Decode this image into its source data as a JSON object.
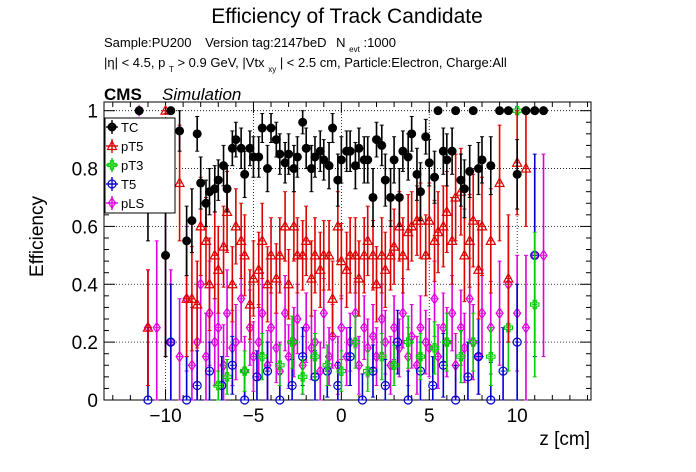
{
  "chart_data": {
    "type": "scatter",
    "title": "Efficiency of Track Candidate",
    "info": {
      "sample": "Sample:PU200",
      "version": "Version tag:2147beD",
      "nevt_main": "N",
      "nevt_sub": "evt",
      "nevt_value": ":1000",
      "cuts": {
        "eta": "|η| < 4.5, p",
        "pt_sub": "T",
        "pt_rest": " > 0.9 GeV, |Vtx",
        "vtx_sub": "xy",
        "vtx_rest": "| < 2.5 cm, Particle:Electron, Charge:All"
      }
    },
    "cms_label": "CMS",
    "simulation_label": "Simulation",
    "xlabel": "z [cm]",
    "ylabel": "Efficiency",
    "xlim": [
      -13.5,
      14.2
    ],
    "ylim": [
      0,
      1.03
    ],
    "xticks": [
      -10,
      -5,
      0,
      5,
      10
    ],
    "yticks": [
      0,
      0.2,
      0.4,
      0.6,
      0.8,
      1
    ],
    "xtick_labels": [
      "−10",
      "−5",
      "0",
      "5",
      "10"
    ],
    "ytick_labels": [
      "0",
      "0.2",
      "0.4",
      "0.6",
      "0.8",
      "1"
    ],
    "grid": true,
    "legend_position": "top-left",
    "series": [
      {
        "name": "TC",
        "color": "#000000",
        "marker": "filled-circle",
        "x": [
          -11.5,
          -11.0,
          -10.0,
          -9.7,
          -9.2,
          -8.8,
          -8.5,
          -8.2,
          -8.0,
          -7.7,
          -7.5,
          -7.2,
          -7.0,
          -6.7,
          -6.5,
          -6.2,
          -6.0,
          -5.7,
          -5.5,
          -5.2,
          -5.0,
          -4.7,
          -4.5,
          -4.2,
          -4.0,
          -3.7,
          -3.5,
          -3.2,
          -3.0,
          -2.7,
          -2.5,
          -2.2,
          -2.0,
          -1.7,
          -1.5,
          -1.2,
          -1.0,
          -0.7,
          -0.5,
          -0.2,
          0.0,
          0.3,
          0.5,
          0.8,
          1.0,
          1.3,
          1.5,
          1.8,
          2.0,
          2.3,
          2.5,
          2.8,
          3.0,
          3.3,
          3.5,
          3.8,
          4.0,
          4.3,
          4.5,
          4.8,
          5.0,
          5.3,
          5.5,
          5.8,
          6.0,
          6.3,
          6.5,
          6.8,
          7.0,
          7.3,
          7.5,
          7.8,
          8.0,
          8.5,
          9.0,
          9.5,
          10.0,
          10.5,
          11.0,
          11.5
        ],
        "values": [
          1.0,
          0.75,
          0.5,
          1.0,
          0.93,
          0.55,
          0.62,
          0.92,
          0.75,
          0.68,
          0.72,
          0.73,
          0.76,
          0.81,
          0.73,
          0.87,
          0.9,
          0.87,
          0.78,
          0.87,
          0.84,
          0.84,
          0.94,
          0.8,
          0.94,
          0.9,
          0.85,
          0.82,
          0.85,
          0.8,
          0.84,
          0.96,
          0.87,
          0.8,
          0.84,
          0.86,
          0.83,
          0.81,
          0.94,
          0.76,
          0.83,
          0.86,
          0.86,
          0.81,
          0.87,
          0.83,
          0.83,
          0.7,
          0.9,
          0.88,
          0.76,
          0.7,
          0.83,
          0.7,
          0.86,
          0.84,
          0.92,
          0.78,
          0.72,
          0.91,
          0.82,
          0.77,
          1.0,
          0.86,
          0.83,
          0.86,
          1.0,
          0.76,
          0.73,
          0.79,
          1.0,
          0.8,
          0.83,
          0.81,
          1.0,
          1.0,
          0.78,
          1.0,
          1.0,
          1.0
        ],
        "err": [
          0.01,
          0.2,
          0.35,
          0.01,
          0.07,
          0.12,
          0.11,
          0.06,
          0.09,
          0.08,
          0.08,
          0.08,
          0.07,
          0.07,
          0.08,
          0.06,
          0.06,
          0.07,
          0.08,
          0.06,
          0.07,
          0.07,
          0.05,
          0.08,
          0.05,
          0.06,
          0.07,
          0.07,
          0.07,
          0.08,
          0.07,
          0.04,
          0.07,
          0.08,
          0.07,
          0.07,
          0.07,
          0.08,
          0.05,
          0.09,
          0.08,
          0.07,
          0.07,
          0.08,
          0.07,
          0.08,
          0.08,
          0.1,
          0.06,
          0.07,
          0.09,
          0.1,
          0.08,
          0.1,
          0.07,
          0.08,
          0.06,
          0.09,
          0.1,
          0.06,
          0.08,
          0.09,
          0.01,
          0.08,
          0.09,
          0.08,
          0.01,
          0.09,
          0.1,
          0.09,
          0.01,
          0.09,
          0.08,
          0.1,
          0.01,
          0.01,
          0.12,
          0.01,
          0.01,
          0.01
        ]
      },
      {
        "name": "pT5",
        "color": "#dd0000",
        "marker": "open-triangle",
        "x": [
          -11.0,
          -10.0,
          -9.2,
          -8.8,
          -8.5,
          -8.2,
          -8.0,
          -7.7,
          -7.5,
          -7.2,
          -7.0,
          -6.7,
          -6.5,
          -6.2,
          -6.0,
          -5.7,
          -5.5,
          -5.2,
          -5.0,
          -4.7,
          -4.5,
          -4.2,
          -4.0,
          -3.7,
          -3.5,
          -3.2,
          -3.0,
          -2.7,
          -2.5,
          -2.2,
          -2.0,
          -1.7,
          -1.5,
          -1.2,
          -1.0,
          -0.7,
          -0.5,
          -0.2,
          0.0,
          0.3,
          0.5,
          0.8,
          1.0,
          1.3,
          1.5,
          1.8,
          2.0,
          2.3,
          2.5,
          2.8,
          3.0,
          3.3,
          3.5,
          3.8,
          4.0,
          4.3,
          4.5,
          4.8,
          5.0,
          5.3,
          5.5,
          5.8,
          6.0,
          6.3,
          6.5,
          6.8,
          7.0,
          7.3,
          7.5,
          7.8,
          8.0,
          8.5,
          9.0,
          9.5,
          10.0,
          10.5
        ],
        "values": [
          0.25,
          1.0,
          0.75,
          0.35,
          0.35,
          0.33,
          0.6,
          0.55,
          0.4,
          0.5,
          0.45,
          0.53,
          0.65,
          0.4,
          0.6,
          0.55,
          0.5,
          0.33,
          0.42,
          0.45,
          0.55,
          0.4,
          0.5,
          0.42,
          0.5,
          0.6,
          0.4,
          0.6,
          0.5,
          0.5,
          0.55,
          0.42,
          0.5,
          0.45,
          0.5,
          0.5,
          0.35,
          0.6,
          0.48,
          0.45,
          0.5,
          0.5,
          0.42,
          0.5,
          0.55,
          0.5,
          0.4,
          0.5,
          0.45,
          0.5,
          0.53,
          0.6,
          0.5,
          0.58,
          0.6,
          0.62,
          0.62,
          0.5,
          0.62,
          0.55,
          0.58,
          0.6,
          0.65,
          0.55,
          0.7,
          0.72,
          0.5,
          0.55,
          0.62,
          0.45,
          0.6,
          0.55,
          0.75,
          0.42,
          0.82,
          0.8
        ],
        "err": [
          0.2,
          0.01,
          0.2,
          0.2,
          0.18,
          0.15,
          0.17,
          0.15,
          0.16,
          0.15,
          0.15,
          0.14,
          0.14,
          0.13,
          0.13,
          0.13,
          0.14,
          0.12,
          0.13,
          0.13,
          0.13,
          0.13,
          0.13,
          0.12,
          0.13,
          0.12,
          0.12,
          0.12,
          0.13,
          0.12,
          0.12,
          0.13,
          0.13,
          0.13,
          0.12,
          0.12,
          0.13,
          0.12,
          0.13,
          0.13,
          0.13,
          0.13,
          0.13,
          0.13,
          0.12,
          0.12,
          0.13,
          0.13,
          0.13,
          0.12,
          0.13,
          0.12,
          0.13,
          0.13,
          0.12,
          0.12,
          0.13,
          0.14,
          0.13,
          0.14,
          0.14,
          0.14,
          0.14,
          0.15,
          0.15,
          0.15,
          0.16,
          0.16,
          0.16,
          0.17,
          0.17,
          0.18,
          0.2,
          0.22,
          0.18,
          0.2
        ]
      },
      {
        "name": "pT3",
        "color": "#00cc00",
        "marker": "open-cross",
        "x": [
          -7.0,
          -6.5,
          -5.5,
          -4.5,
          -3.5,
          -2.8,
          -2.2,
          -1.5,
          -0.8,
          0.0,
          0.8,
          1.5,
          2.3,
          3.0,
          3.8,
          4.5,
          5.3,
          6.0,
          6.8,
          7.5,
          8.5,
          9.5,
          10.0,
          11.0
        ],
        "values": [
          0.05,
          0.08,
          0.1,
          0.15,
          0.12,
          0.2,
          0.08,
          0.15,
          0.12,
          0.1,
          0.2,
          0.1,
          0.15,
          0.12,
          0.2,
          0.15,
          0.18,
          0.2,
          0.15,
          0.2,
          0.15,
          0.25,
          1.0,
          0.33
        ],
        "err": [
          0.05,
          0.06,
          0.07,
          0.08,
          0.07,
          0.09,
          0.06,
          0.08,
          0.07,
          0.07,
          0.09,
          0.07,
          0.08,
          0.07,
          0.09,
          0.08,
          0.09,
          0.1,
          0.09,
          0.1,
          0.1,
          0.15,
          0.01,
          0.25
        ]
      },
      {
        "name": "T5",
        "color": "#0000cc",
        "marker": "open-circle",
        "x": [
          -11.0,
          -9.7,
          -8.8,
          -8.2,
          -7.5,
          -6.8,
          -6.2,
          -5.5,
          -4.8,
          -4.2,
          -3.5,
          -2.8,
          -2.2,
          -1.5,
          -0.8,
          -0.2,
          0.5,
          1.2,
          1.8,
          2.5,
          3.2,
          3.8,
          4.5,
          5.2,
          5.8,
          6.5,
          7.2,
          7.8,
          8.5,
          9.2,
          10.0,
          11.0
        ],
        "values": [
          0.0,
          0.2,
          0.0,
          0.05,
          0.1,
          0.05,
          0.12,
          0.0,
          0.08,
          0.1,
          0.0,
          0.05,
          0.15,
          0.08,
          0.1,
          0.05,
          0.15,
          0.0,
          0.1,
          0.05,
          0.2,
          0.0,
          0.1,
          0.05,
          0.12,
          0.0,
          0.08,
          0.15,
          0.0,
          0.1,
          0.2,
          0.5
        ],
        "err": [
          0.25,
          0.2,
          0.15,
          0.12,
          0.1,
          0.1,
          0.1,
          0.1,
          0.09,
          0.1,
          0.09,
          0.09,
          0.1,
          0.09,
          0.09,
          0.08,
          0.1,
          0.09,
          0.09,
          0.09,
          0.11,
          0.1,
          0.1,
          0.1,
          0.11,
          0.12,
          0.12,
          0.13,
          0.13,
          0.15,
          0.2,
          0.35
        ]
      },
      {
        "name": "pLS",
        "color": "#dd00dd",
        "marker": "open-diamond",
        "x": [
          -11.5,
          -11.0,
          -10.5,
          -10.0,
          -9.7,
          -9.2,
          -8.8,
          -8.5,
          -8.2,
          -8.0,
          -7.7,
          -7.5,
          -7.2,
          -7.0,
          -6.7,
          -6.5,
          -6.2,
          -6.0,
          -5.7,
          -5.5,
          -5.2,
          -5.0,
          -4.7,
          -4.5,
          -4.2,
          -4.0,
          -3.7,
          -3.5,
          -3.2,
          -3.0,
          -2.7,
          -2.5,
          -2.2,
          -2.0,
          -1.7,
          -1.5,
          -1.2,
          -1.0,
          -0.7,
          -0.5,
          -0.2,
          0.0,
          0.3,
          0.5,
          0.8,
          1.0,
          1.3,
          1.5,
          1.8,
          2.0,
          2.3,
          2.5,
          2.8,
          3.0,
          3.3,
          3.5,
          3.8,
          4.0,
          4.3,
          4.5,
          4.8,
          5.0,
          5.3,
          5.5,
          5.8,
          6.0,
          6.3,
          6.5,
          6.8,
          7.0,
          7.3,
          7.5,
          7.8,
          8.0,
          8.5,
          9.0,
          9.5,
          10.0,
          10.5,
          11.0,
          11.5
        ],
        "values": [
          1.0,
          0.25,
          0.25,
          0.5,
          0.2,
          0.15,
          0.35,
          0.12,
          0.2,
          0.4,
          0.15,
          0.3,
          0.2,
          0.25,
          0.12,
          0.3,
          0.18,
          0.2,
          0.35,
          0.1,
          0.25,
          0.15,
          0.2,
          0.3,
          0.12,
          0.25,
          0.18,
          0.1,
          0.3,
          0.15,
          0.2,
          0.28,
          0.12,
          0.25,
          0.18,
          0.2,
          0.1,
          0.3,
          0.15,
          0.22,
          0.12,
          0.25,
          0.15,
          0.2,
          0.3,
          0.12,
          0.25,
          0.18,
          0.22,
          0.15,
          0.28,
          0.2,
          0.12,
          0.25,
          0.18,
          0.3,
          0.15,
          0.22,
          0.12,
          0.25,
          0.2,
          0.18,
          0.35,
          0.15,
          0.25,
          0.2,
          0.3,
          0.12,
          0.25,
          0.18,
          0.35,
          0.2,
          0.15,
          0.3,
          0.25,
          0.3,
          0.4,
          0.3,
          0.25,
          0.5,
          0.5
        ],
        "err": [
          0.01,
          0.2,
          0.3,
          0.35,
          0.25,
          0.2,
          0.25,
          0.2,
          0.2,
          0.2,
          0.15,
          0.18,
          0.15,
          0.15,
          0.14,
          0.15,
          0.13,
          0.13,
          0.15,
          0.12,
          0.13,
          0.12,
          0.13,
          0.14,
          0.12,
          0.12,
          0.12,
          0.1,
          0.13,
          0.11,
          0.12,
          0.12,
          0.1,
          0.12,
          0.11,
          0.11,
          0.1,
          0.12,
          0.1,
          0.11,
          0.1,
          0.11,
          0.1,
          0.1,
          0.12,
          0.1,
          0.11,
          0.1,
          0.11,
          0.1,
          0.12,
          0.11,
          0.1,
          0.11,
          0.1,
          0.12,
          0.1,
          0.11,
          0.1,
          0.11,
          0.11,
          0.1,
          0.13,
          0.11,
          0.12,
          0.12,
          0.13,
          0.11,
          0.13,
          0.12,
          0.14,
          0.13,
          0.13,
          0.15,
          0.16,
          0.18,
          0.2,
          0.2,
          0.25,
          0.3,
          0.35
        ]
      }
    ]
  }
}
